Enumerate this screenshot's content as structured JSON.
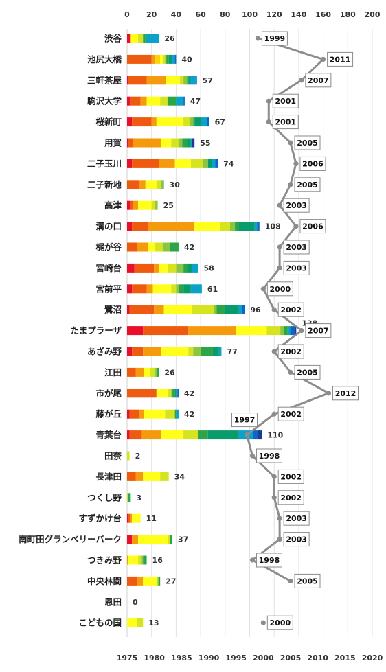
{
  "chart_data": {
    "type": "bar",
    "subtype": "stacked-horizontal-bar-with-line-overlay",
    "title": "",
    "top_axis": {
      "label": "",
      "range": [
        0,
        200
      ],
      "ticks": [
        0,
        20,
        40,
        60,
        80,
        100,
        120,
        140,
        160,
        180,
        200
      ]
    },
    "bottom_axis": {
      "label": "",
      "range": [
        1975,
        2020
      ],
      "ticks": [
        1975,
        1980,
        1985,
        1990,
        1995,
        2000,
        2005,
        2010,
        2015,
        2020
      ]
    },
    "grid": true,
    "legend": "none",
    "segment_colors": [
      "#e8102a",
      "#ee5a0f",
      "#f59a0d",
      "#fbd20a",
      "#ffff19",
      "#d6e31f",
      "#8cc640",
      "#2ca549",
      "#089c6b",
      "#0aa2c8",
      "#0e66c2",
      "#1c3a9a"
    ],
    "year_point_color": "#8c8c8c",
    "stations": [
      {
        "name": "渋谷",
        "total": 26,
        "segments": [
          3,
          0,
          0,
          0,
          6,
          4,
          0,
          2,
          1,
          10,
          0,
          0
        ],
        "year": 1999
      },
      {
        "name": "池尻大橋",
        "total": 40,
        "segments": [
          0,
          20,
          3,
          4,
          2,
          2,
          1,
          2,
          3,
          2,
          1,
          0
        ],
        "year": 2011
      },
      {
        "name": "三軒茶屋",
        "total": 57,
        "segments": [
          1,
          15,
          16,
          0,
          11,
          3,
          3,
          1,
          1,
          5,
          1,
          0
        ],
        "year": 2007
      },
      {
        "name": "駒沢大学",
        "total": 47,
        "segments": [
          3,
          8,
          5,
          0,
          11,
          6,
          0,
          7,
          0,
          6,
          1,
          0
        ],
        "year": 2001
      },
      {
        "name": "桜新町",
        "total": 67,
        "segments": [
          4,
          16,
          4,
          0,
          22,
          5,
          3,
          1,
          5,
          5,
          2,
          0
        ],
        "year": 2001
      },
      {
        "name": "用賀",
        "total": 55,
        "segments": [
          1,
          4,
          23,
          0,
          8,
          6,
          3,
          4,
          3,
          1,
          0,
          2
        ],
        "year": 2005
      },
      {
        "name": "二子玉川",
        "total": 74,
        "segments": [
          4,
          22,
          13,
          0,
          13,
          10,
          4,
          0,
          3,
          3,
          2,
          0
        ],
        "year": 2006
      },
      {
        "name": "二子新地",
        "total": 30,
        "segments": [
          0,
          10,
          5,
          0,
          9,
          4,
          1,
          1,
          0,
          0,
          0,
          0
        ],
        "year": 2005
      },
      {
        "name": "高津",
        "total": 25,
        "segments": [
          3,
          2,
          4,
          0,
          11,
          3,
          2,
          0,
          0,
          0,
          0,
          0
        ],
        "year": 2003
      },
      {
        "name": "溝の口",
        "total": 108,
        "segments": [
          4,
          13,
          38,
          0,
          21,
          8,
          4,
          3,
          13,
          2,
          2,
          0
        ],
        "year": 2006
      },
      {
        "name": "梶が谷",
        "total": 42,
        "segments": [
          0,
          8,
          9,
          0,
          6,
          6,
          6,
          7,
          0,
          0,
          0,
          0
        ],
        "year": 2003
      },
      {
        "name": "宮崎台",
        "total": 58,
        "segments": [
          6,
          16,
          4,
          0,
          7,
          7,
          6,
          3,
          4,
          5,
          0,
          0
        ],
        "year": 2003
      },
      {
        "name": "宮前平",
        "total": 61,
        "segments": [
          4,
          12,
          5,
          0,
          15,
          4,
          2,
          4,
          6,
          9,
          0,
          0
        ],
        "year": 2000
      },
      {
        "name": "鷺沼",
        "total": 96,
        "segments": [
          2,
          20,
          8,
          0,
          23,
          18,
          2,
          7,
          11,
          3,
          2,
          0
        ],
        "year": 2002
      },
      {
        "name": "たまプラーザ",
        "total": 138,
        "segments": [
          13,
          37,
          39,
          0,
          25,
          11,
          3,
          3,
          1,
          1,
          4,
          1
        ],
        "year": 2007
      },
      {
        "name": "あざみ野",
        "total": 77,
        "segments": [
          4,
          9,
          15,
          0,
          22,
          4,
          6,
          10,
          5,
          2,
          0,
          0
        ],
        "year": 2002
      },
      {
        "name": "江田",
        "total": 26,
        "segments": [
          0,
          7,
          7,
          0,
          5,
          4,
          1,
          2,
          0,
          0,
          0,
          0
        ],
        "year": 2005
      },
      {
        "name": "市が尾",
        "total": 42,
        "segments": [
          0,
          24,
          0,
          0,
          9,
          3,
          1,
          2,
          1,
          1,
          1,
          0
        ],
        "year": 2012
      },
      {
        "name": "藤が丘",
        "total": 42,
        "segments": [
          2,
          8,
          4,
          0,
          17,
          8,
          0,
          1,
          0,
          2,
          0,
          0
        ],
        "year": 2002
      },
      {
        "name": "青葉台",
        "total": 110,
        "segments": [
          2,
          10,
          16,
          0,
          18,
          12,
          0,
          8,
          25,
          12,
          4,
          3
        ],
        "year": 1997
      },
      {
        "name": "田奈",
        "total": 2,
        "segments": [
          0,
          0,
          0,
          0,
          0,
          2,
          0,
          0,
          0,
          0,
          0,
          0
        ],
        "year": 1998
      },
      {
        "name": "長津田",
        "total": 34,
        "segments": [
          0,
          7,
          6,
          0,
          14,
          7,
          0,
          0,
          0,
          0,
          0,
          0
        ],
        "year": 2002
      },
      {
        "name": "つくし野",
        "total": 3,
        "segments": [
          0,
          0,
          0,
          0,
          0,
          1,
          0,
          2,
          0,
          0,
          0,
          0
        ],
        "year": 2002
      },
      {
        "name": "すずかけ台",
        "total": 11,
        "segments": [
          1,
          2,
          1,
          0,
          7,
          0,
          0,
          0,
          0,
          0,
          0,
          0
        ],
        "year": 2003
      },
      {
        "name": "南町田グランベリーパーク",
        "total": 37,
        "segments": [
          4,
          0,
          5,
          0,
          24,
          2,
          0,
          2,
          0,
          0,
          0,
          0
        ],
        "year": 2003
      },
      {
        "name": "つきみ野",
        "total": 16,
        "segments": [
          0,
          0,
          1,
          0,
          8,
          3,
          1,
          3,
          0,
          0,
          0,
          0
        ],
        "year": 1998
      },
      {
        "name": "中央林間",
        "total": 27,
        "segments": [
          0,
          8,
          5,
          0,
          11,
          1,
          1,
          1,
          0,
          0,
          0,
          0
        ],
        "year": 2005
      },
      {
        "name": "恩田",
        "total": 0,
        "segments": [
          0,
          0,
          0,
          0,
          0,
          0,
          0,
          0,
          0,
          0,
          0,
          0
        ],
        "year": null
      },
      {
        "name": "こどもの国",
        "total": 13,
        "segments": [
          0,
          0,
          0,
          0,
          8,
          5,
          0,
          0,
          0,
          0,
          0,
          0
        ],
        "year": 2000
      }
    ]
  }
}
